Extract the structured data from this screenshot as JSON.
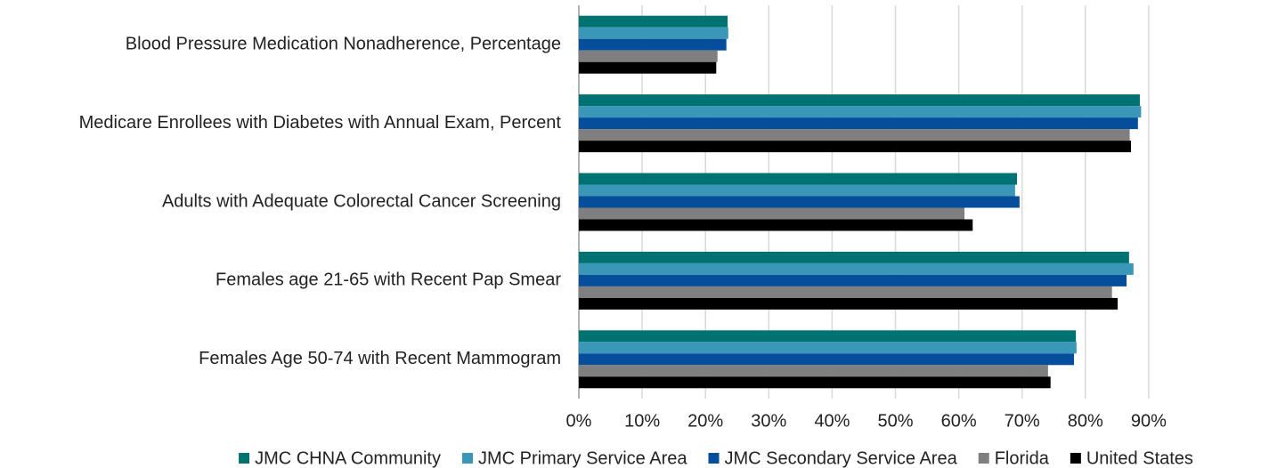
{
  "chart_data": {
    "type": "hbar",
    "categories": [
      "Blood Pressure Medication Nonadherence, Percentage",
      "Medicare Enrollees with Diabetes with Annual Exam, Percent",
      "Adults with Adequate Colorectal Cancer Screening",
      "Females age 21-65 with Recent Pap Smear",
      "Females Age 50-74 with Recent Mammogram"
    ],
    "series": [
      {
        "name": "JMC CHNA Community",
        "color": "#007272",
        "values": [
          23.5,
          88.6,
          69.2,
          86.9,
          78.5
        ]
      },
      {
        "name": "JMC Primary Service Area",
        "color": "#3a97b8",
        "values": [
          23.6,
          88.8,
          68.9,
          87.6,
          78.6
        ]
      },
      {
        "name": "JMC Secondary Service Area",
        "color": "#054e9b",
        "values": [
          23.3,
          88.3,
          69.6,
          86.5,
          78.2
        ]
      },
      {
        "name": "Florida",
        "color": "#7f7f7f",
        "values": [
          21.9,
          87.0,
          60.9,
          84.2,
          74.1
        ]
      },
      {
        "name": "United States",
        "color": "#000000",
        "values": [
          21.7,
          87.2,
          62.2,
          85.1,
          74.5
        ]
      }
    ],
    "xlim": [
      0,
      100
    ],
    "xticks": [
      {
        "value": 0,
        "label": "0%"
      },
      {
        "value": 10,
        "label": "10%"
      },
      {
        "value": 20,
        "label": "20%"
      },
      {
        "value": 30,
        "label": "30%"
      },
      {
        "value": 40,
        "label": "40%"
      },
      {
        "value": 50,
        "label": "50%"
      },
      {
        "value": 60,
        "label": "60%"
      },
      {
        "value": 70,
        "label": "70%"
      },
      {
        "value": 80,
        "label": "80%"
      },
      {
        "value": 90,
        "label": "90%"
      }
    ],
    "grid": true,
    "legend": "bottom"
  }
}
